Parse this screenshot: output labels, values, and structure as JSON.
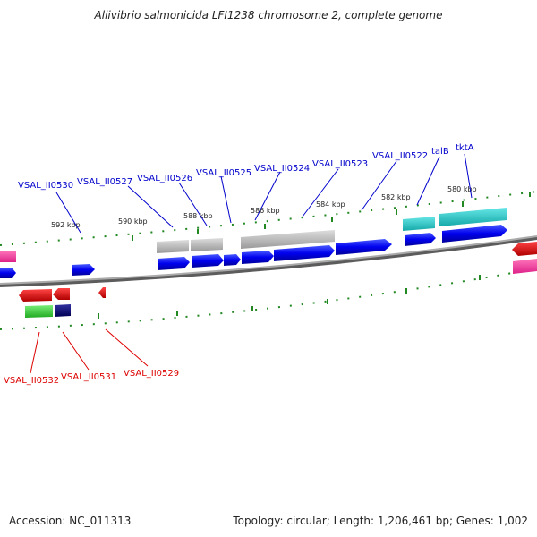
{
  "title": "Aliivibrio salmonicida LFI1238 chromosome 2, complete genome",
  "accession_text": "Accession: NC_011313",
  "stats_text": "Topology: circular; Length: 1,206,461 bp; Genes: 1,002",
  "colors": {
    "forward_label": "#0000cc",
    "reverse_label": "#dd0000",
    "backbone": "#777777",
    "tick": "#228822"
  },
  "kbp_ticks": [
    "592 kbp",
    "590 kbp",
    "588 kbp",
    "586 kbp",
    "584 kbp",
    "582 kbp",
    "580 kbp"
  ],
  "forward_genes": [
    "VSAL_II0530",
    "VSAL_II0527",
    "VSAL_II0526",
    "VSAL_II0525",
    "VSAL_II0524",
    "VSAL_II0523",
    "VSAL_II0522",
    "talB",
    "tktA"
  ],
  "reverse_genes": [
    "VSAL_II0532",
    "VSAL_II0531",
    "VSAL_II0529"
  ]
}
